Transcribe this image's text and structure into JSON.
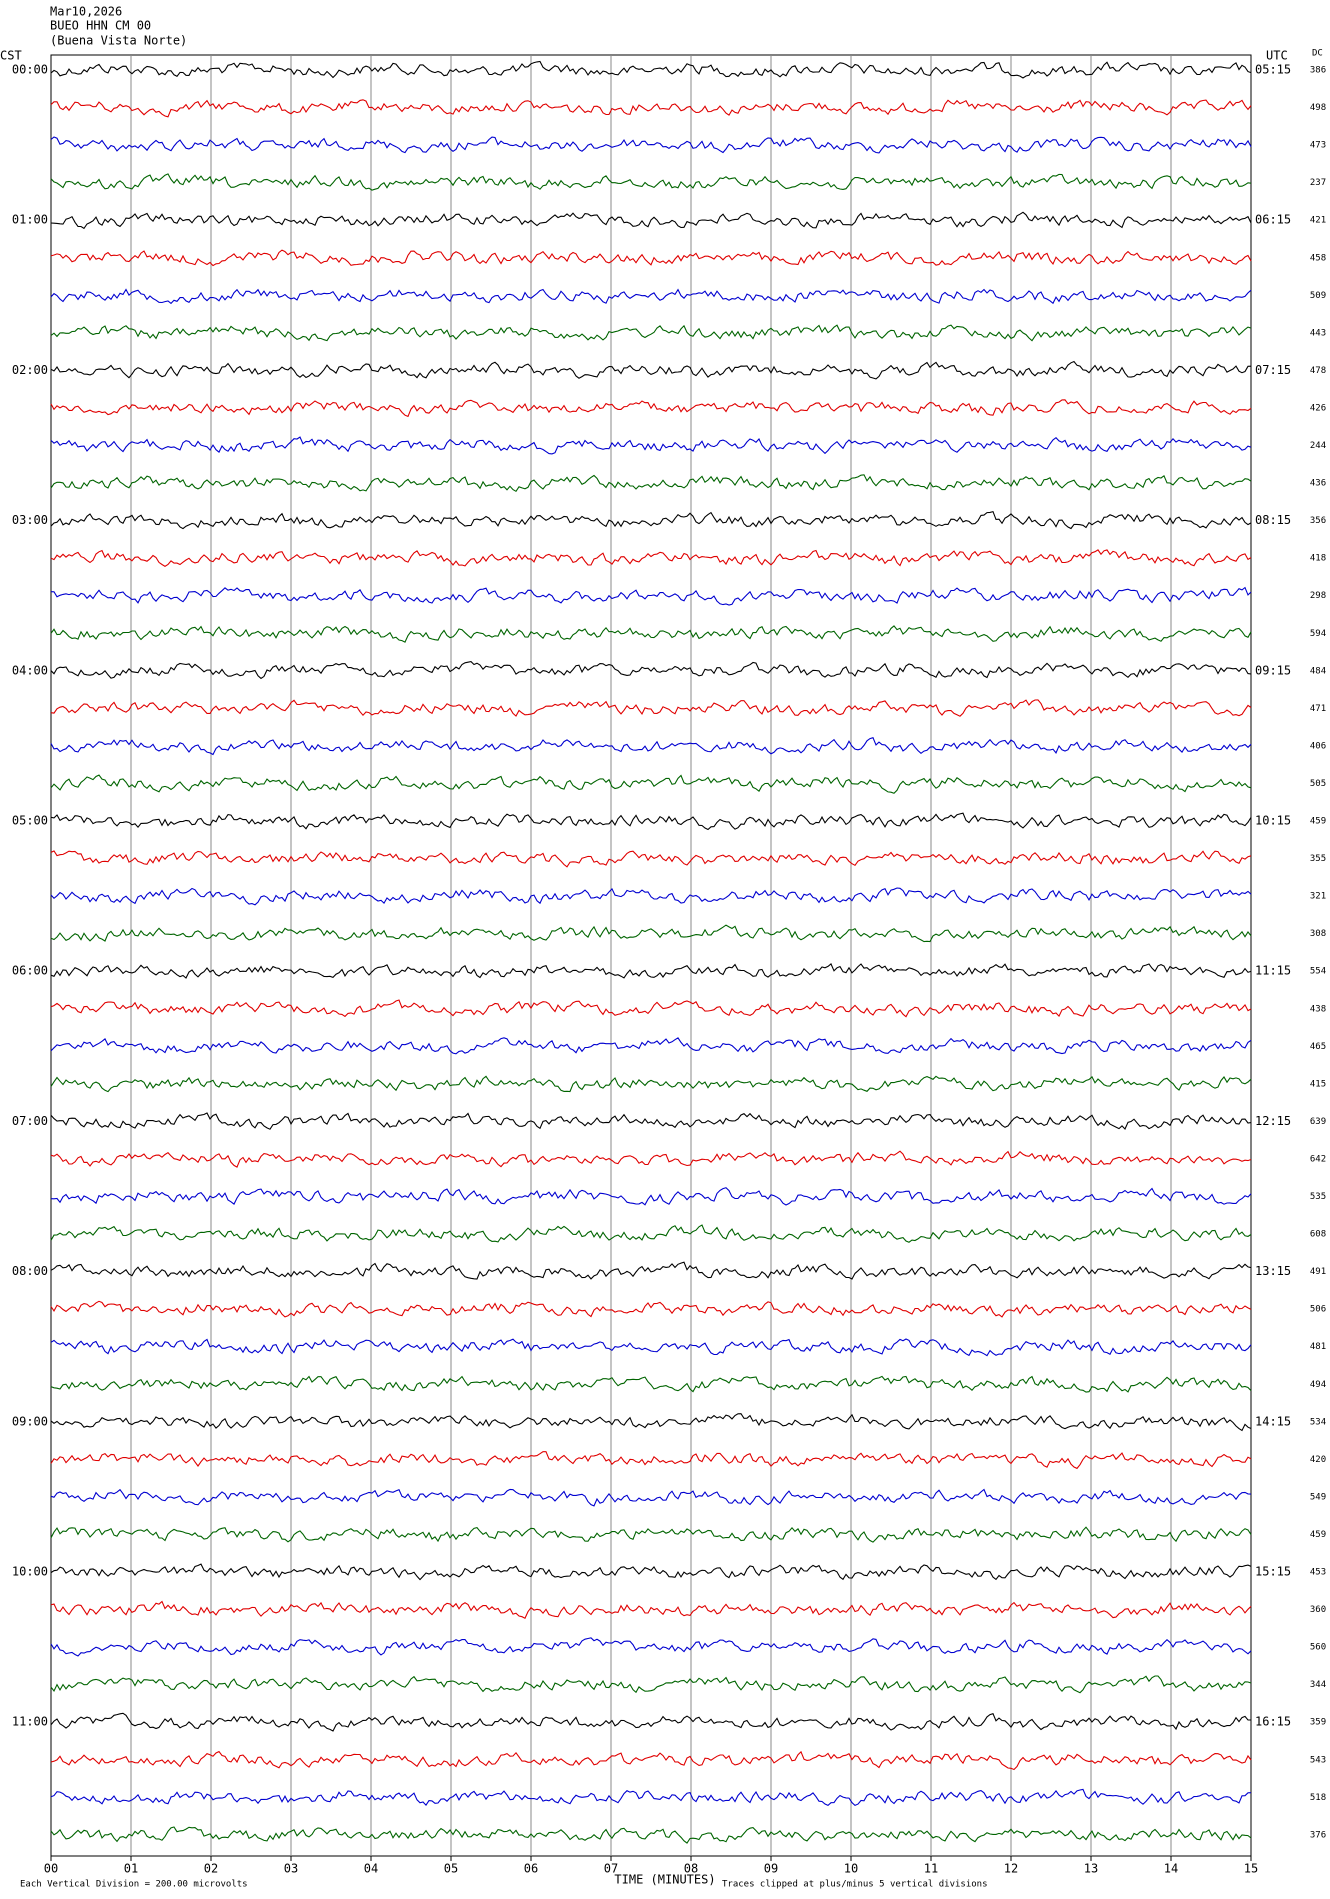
{
  "header": {
    "date": "Mar10,2026",
    "station": "BUEO HHN CM 00",
    "location": "(Buena Vista Norte)"
  },
  "left_axis": {
    "label": "CST",
    "times": [
      "00:00",
      "01:00",
      "02:00",
      "03:00",
      "04:00",
      "05:00",
      "06:00",
      "07:00",
      "08:00",
      "09:00",
      "10:00",
      "11:00"
    ]
  },
  "right_axis": {
    "label": "UTC",
    "times": [
      "05:15",
      "06:15",
      "07:15",
      "08:15",
      "09:15",
      "10:15",
      "11:15",
      "12:15",
      "13:15",
      "14:15",
      "15:15",
      "16:15"
    ]
  },
  "dc": {
    "label": "DC",
    "values": [
      386,
      498,
      473,
      237,
      421,
      458,
      509,
      443,
      478,
      426,
      244,
      436,
      356,
      418,
      298,
      594,
      484,
      471,
      406,
      505,
      459,
      355,
      321,
      308,
      554,
      438,
      465,
      415,
      639,
      642,
      535,
      608,
      491,
      506,
      481,
      494,
      534,
      420,
      549,
      459,
      453,
      360,
      560,
      344,
      359,
      543,
      518,
      376
    ]
  },
  "x_axis": {
    "ticks": [
      "00",
      "01",
      "02",
      "03",
      "04",
      "05",
      "06",
      "07",
      "08",
      "09",
      "10",
      "11",
      "12",
      "13",
      "14",
      "15"
    ],
    "label": "TIME (MINUTES)"
  },
  "footer": {
    "scale_note": "Each Vertical Division =  200.00 microvolts",
    "clip_note": "Traces clipped at plus/minus 5 vertical divisions"
  }
}
